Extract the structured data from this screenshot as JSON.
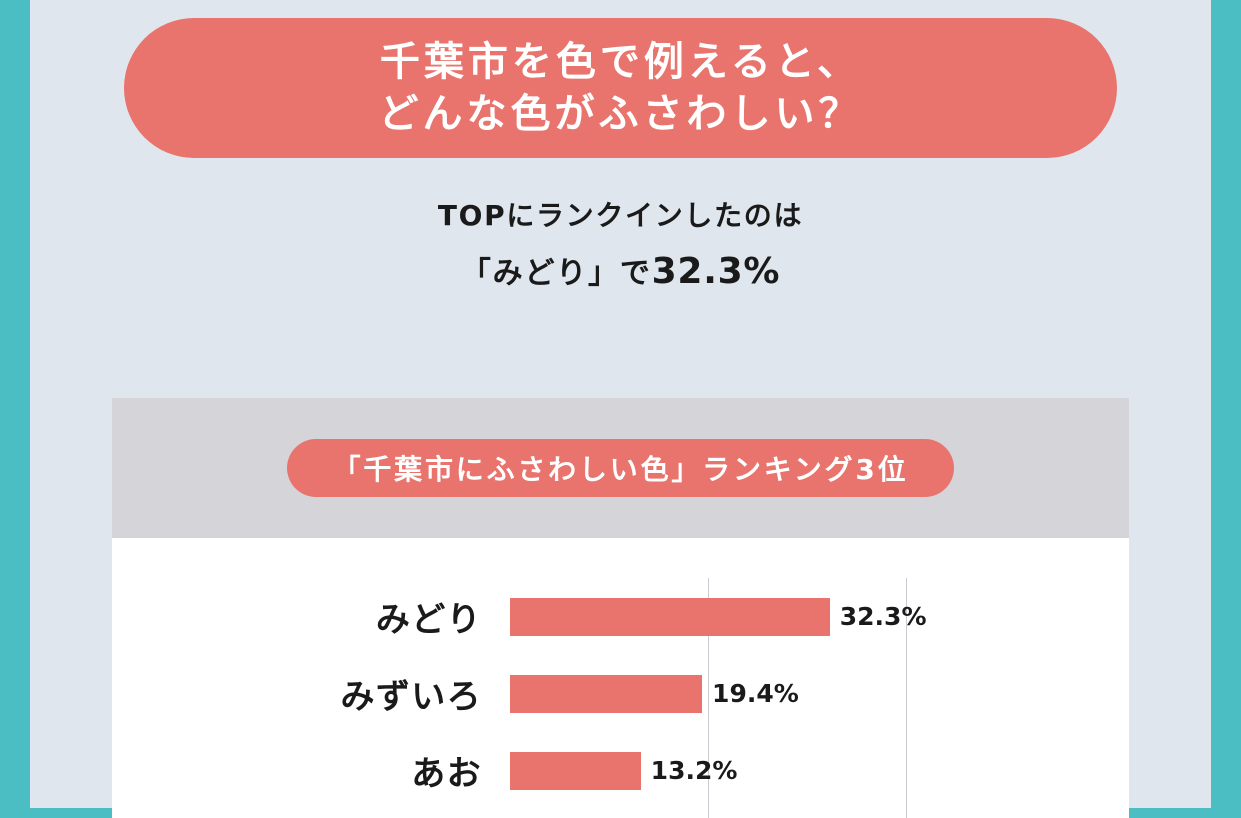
{
  "page": {
    "edge_color": "#4bbec3",
    "background_color": "#e0e6ed",
    "accent_color": "#e8746d"
  },
  "header": {
    "title_line1": "千葉市を色で例えると、",
    "title_line2": "どんな色がふさわしい？"
  },
  "intro": {
    "line1": "TOPにランクインしたのは",
    "line2_prefix": "「みどり」で",
    "line2_value": "32.3%"
  },
  "ranking_card": {
    "badge": "「千葉市にふさわしい色」ランキング3位"
  },
  "chart_data": {
    "type": "bar",
    "orientation": "horizontal",
    "title": "「千葉市にふさわしい色」ランキング3位",
    "categories": [
      "みどり",
      "みずいろ",
      "あお"
    ],
    "values": [
      32.3,
      19.4,
      13.2
    ],
    "labels": [
      "32.3%",
      "19.4%",
      "13.2%"
    ],
    "xlim": [
      0,
      40
    ],
    "gridlines_pct": [
      20,
      40
    ],
    "grid": true,
    "legend": false,
    "bar_color": "#e8746d"
  }
}
